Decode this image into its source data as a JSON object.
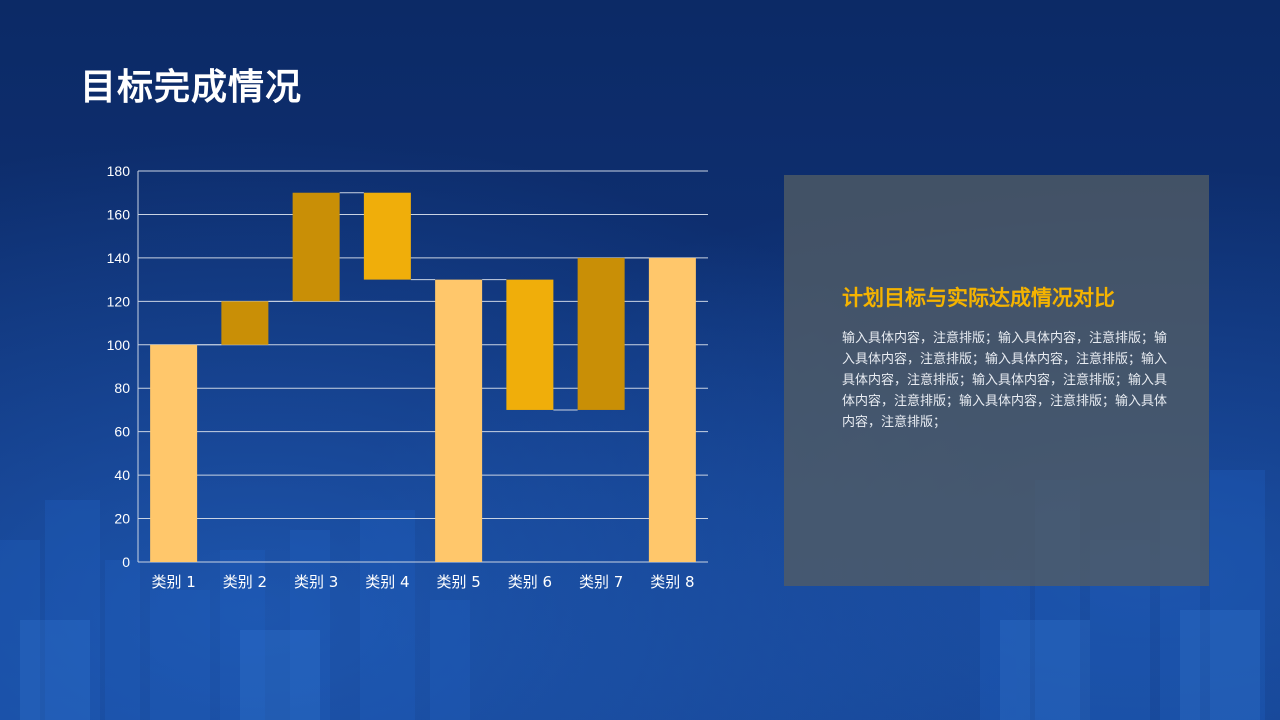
{
  "page": {
    "title": "目标完成情况"
  },
  "panel": {
    "title": "计划目标与实际达成情况对比",
    "body": "输入具体内容，注意排版；输入具体内容，注意排版；输入具体内容，注意排版；输入具体内容，注意排版；输入具体内容，注意排版；输入具体内容，注意排版；输入具体内容，注意排版；输入具体内容，注意排版；输入具体内容，注意排版；"
  },
  "chart_data": {
    "type": "bar",
    "subtype": "waterfall",
    "title": "",
    "xlabel": "",
    "ylabel": "",
    "ylim": [
      0,
      180
    ],
    "yticks": [
      0,
      20,
      40,
      60,
      80,
      100,
      120,
      140,
      160,
      180
    ],
    "grid": true,
    "legend": "none",
    "categories": [
      "类别 1",
      "类别 2",
      "类别 3",
      "类别 4",
      "类别 5",
      "类别 6",
      "类别 7",
      "类别 8"
    ],
    "bars": [
      {
        "category": "类别 1",
        "base": 0,
        "top": 100,
        "kind": "total"
      },
      {
        "category": "类别 2",
        "base": 100,
        "top": 120,
        "kind": "increase"
      },
      {
        "category": "类别 3",
        "base": 120,
        "top": 170,
        "kind": "increase"
      },
      {
        "category": "类别 4",
        "base": 130,
        "top": 170,
        "kind": "decrease"
      },
      {
        "category": "类别 5",
        "base": 0,
        "top": 130,
        "kind": "total"
      },
      {
        "category": "类别 6",
        "base": 70,
        "top": 130,
        "kind": "decrease"
      },
      {
        "category": "类别 7",
        "base": 70,
        "top": 140,
        "kind": "increase"
      },
      {
        "category": "类别 8",
        "base": 0,
        "top": 140,
        "kind": "total"
      }
    ],
    "colors": {
      "total": "#ffc76b",
      "increase": "#c98f06",
      "decrease": "#f0ae0a",
      "grid": "#c9d3e3",
      "axis_text": "#ffffff"
    }
  }
}
